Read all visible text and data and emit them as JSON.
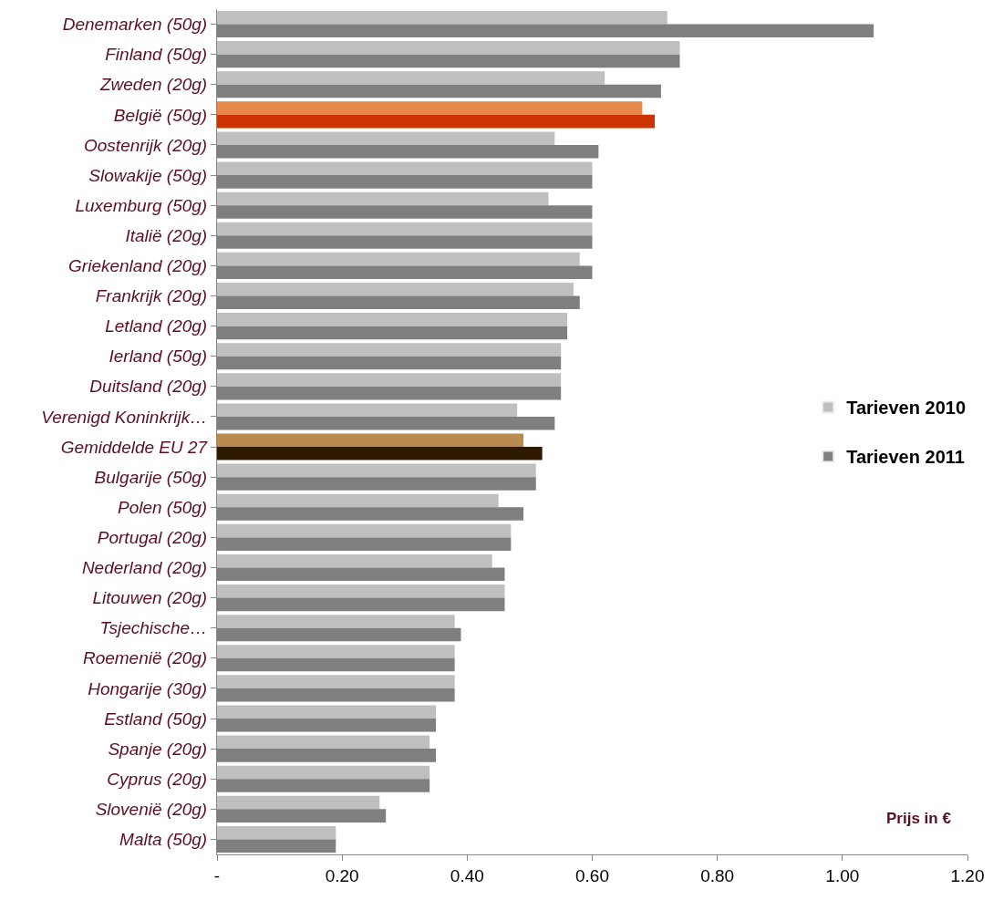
{
  "chart_data": {
    "type": "bar",
    "orientation": "horizontal",
    "categories": [
      "Denemarken (50g)",
      "Finland (50g)",
      "Zweden (20g)",
      "België (50g)",
      "Oostenrijk (20g)",
      "Slowakije (50g)",
      "Luxemburg (50g)",
      "Italië (20g)",
      "Griekenland (20g)",
      "Frankrijk (20g)",
      "Letland (20g)",
      "Ierland (50g)",
      "Duitsland (20g)",
      "Verenigd Koninkrijk…",
      "Gemiddelde EU 27",
      "Bulgarije (50g)",
      "Polen (50g)",
      "Portugal (20g)",
      "Nederland (20g)",
      "Litouwen (20g)",
      "Tsjechische…",
      "Roemenië (20g)",
      "Hongarije (30g)",
      "Estland (50g)",
      "Spanje (20g)",
      "Cyprus (20g)",
      "Slovenië (20g)",
      "Malta (50g)"
    ],
    "series": [
      {
        "name": "Tarieven 2010",
        "color": "#bfbfbf",
        "colors": [
          "#bfbfbf",
          "#bfbfbf",
          "#bfbfbf",
          "#e6894a",
          "#bfbfbf",
          "#bfbfbf",
          "#bfbfbf",
          "#bfbfbf",
          "#bfbfbf",
          "#bfbfbf",
          "#bfbfbf",
          "#bfbfbf",
          "#bfbfbf",
          "#bfbfbf",
          "#b98b4e",
          "#bfbfbf",
          "#bfbfbf",
          "#bfbfbf",
          "#bfbfbf",
          "#bfbfbf",
          "#bfbfbf",
          "#bfbfbf",
          "#bfbfbf",
          "#bfbfbf",
          "#bfbfbf",
          "#bfbfbf",
          "#bfbfbf",
          "#bfbfbf"
        ],
        "values": [
          0.72,
          0.74,
          0.62,
          0.68,
          0.54,
          0.6,
          0.53,
          0.6,
          0.58,
          0.57,
          0.56,
          0.55,
          0.55,
          0.48,
          0.49,
          0.51,
          0.45,
          0.47,
          0.44,
          0.46,
          0.38,
          0.38,
          0.38,
          0.35,
          0.34,
          0.34,
          0.26,
          0.19
        ]
      },
      {
        "name": "Tarieven 2011",
        "color": "#7f7f7f",
        "colors": [
          "#7f7f7f",
          "#7f7f7f",
          "#7f7f7f",
          "#cc3300",
          "#7f7f7f",
          "#7f7f7f",
          "#7f7f7f",
          "#7f7f7f",
          "#7f7f7f",
          "#7f7f7f",
          "#7f7f7f",
          "#7f7f7f",
          "#7f7f7f",
          "#7f7f7f",
          "#2e1a00",
          "#7f7f7f",
          "#7f7f7f",
          "#7f7f7f",
          "#7f7f7f",
          "#7f7f7f",
          "#7f7f7f",
          "#7f7f7f",
          "#7f7f7f",
          "#7f7f7f",
          "#7f7f7f",
          "#7f7f7f",
          "#7f7f7f",
          "#7f7f7f"
        ],
        "values": [
          1.05,
          0.74,
          0.71,
          0.7,
          0.61,
          0.6,
          0.6,
          0.6,
          0.6,
          0.58,
          0.56,
          0.55,
          0.55,
          0.54,
          0.52,
          0.51,
          0.49,
          0.47,
          0.46,
          0.46,
          0.39,
          0.38,
          0.38,
          0.35,
          0.35,
          0.34,
          0.27,
          0.19
        ]
      }
    ],
    "xlim": [
      0,
      1.2
    ],
    "xticks": [
      {
        "value": 0,
        "label": "-"
      },
      {
        "value": 0.2,
        "label": "0.20"
      },
      {
        "value": 0.4,
        "label": "0.40"
      },
      {
        "value": 0.6,
        "label": "0.60"
      },
      {
        "value": 0.8,
        "label": "0.80"
      },
      {
        "value": 1.0,
        "label": "1.00"
      },
      {
        "value": 1.2,
        "label": "1.20"
      }
    ],
    "annotations": [
      "Prijs in €"
    ],
    "legend": "right"
  }
}
